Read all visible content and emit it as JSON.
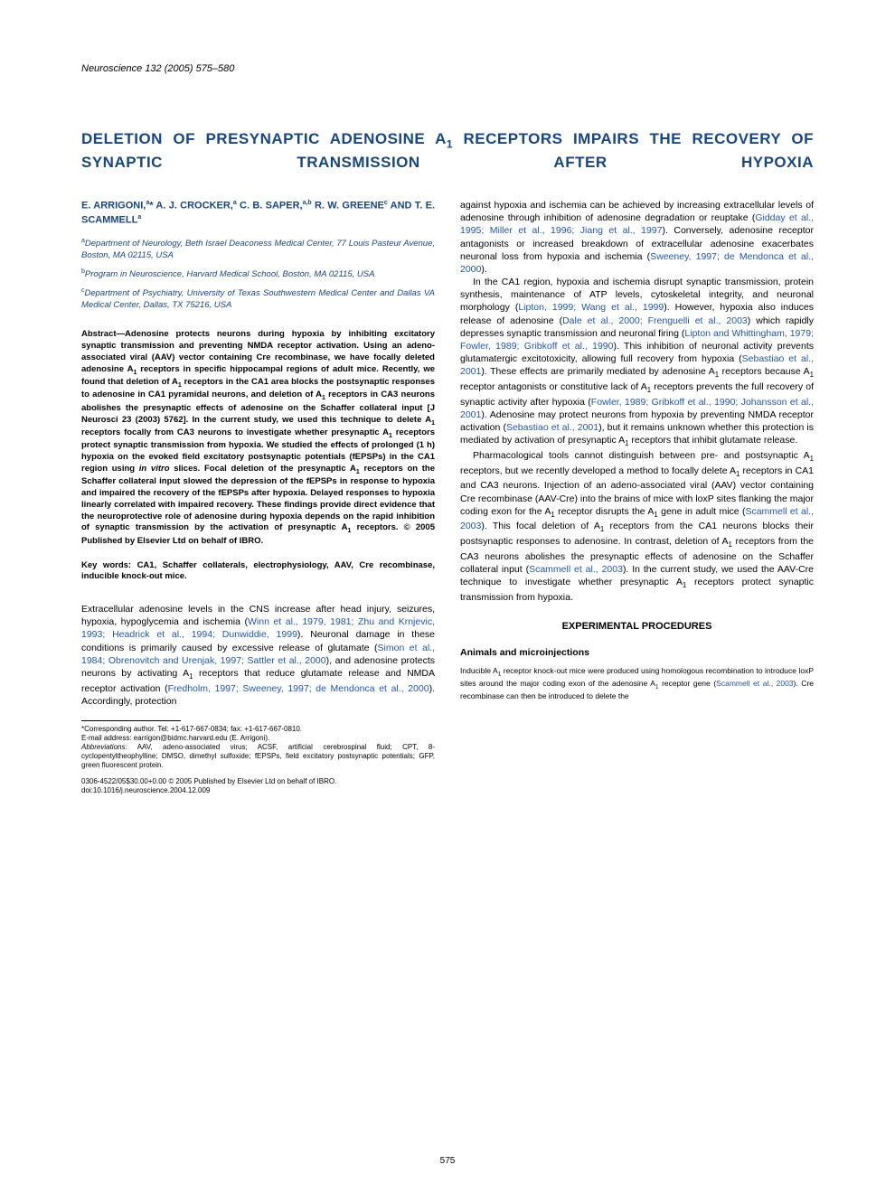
{
  "journal_citation": "Neuroscience 132 (2005) 575–580",
  "title_html": "DELETION OF PRESYNAPTIC ADENOSINE A<sub>1</sub> RECEPTORS IMPAIRS THE RECOVERY OF SYNAPTIC TRANSMISSION AFTER HYPOXIA",
  "authors_html": "E. ARRIGONI,<sup>a</sup>* A. J. CROCKER,<sup>a</sup> C. B. SAPER,<sup>a,b</sup> R. W. GREENE<sup>c</sup> AND T. E. SCAMMELL<sup>a</sup>",
  "affiliations": [
    "<sup>a</sup>Department of Neurology, Beth Israel Deaconess Medical Center, 77 Louis Pasteur Avenue, Boston, MA 02115, USA",
    "<sup>b</sup>Program in Neuroscience, Harvard Medical School, Boston, MA 02115, USA",
    "<sup>c</sup>Department of Psychiatry, University of Texas Southwestern Medical Center and Dallas VA Medical Center, Dallas, TX 75216, USA"
  ],
  "abstract_html": "Abstract—Adenosine protects neurons during hypoxia by inhibiting excitatory synaptic transmission and preventing NMDA receptor activation. Using an adeno-associated viral (AAV) vector containing Cre recombinase, we have focally deleted adenosine A<sub>1</sub> receptors in specific hippocampal regions of adult mice. Recently, we found that deletion of A<sub>1</sub> receptors in the CA1 area blocks the postsynaptic responses to adenosine in CA1 pyramidal neurons, and deletion of A<sub>1</sub> receptors in CA3 neurons abolishes the presynaptic effects of adenosine on the Schaffer collateral input [J Neurosci 23 (2003) 5762]. In the current study, we used this technique to delete A<sub>1</sub> receptors focally from CA3 neurons to investigate whether presynaptic A<sub>1</sub> receptors protect synaptic transmission from hypoxia. We studied the effects of prolonged (1 h) hypoxia on the evoked field excitatory postsynaptic potentials (fEPSPs) in the CA1 region using <i>in vitro</i> slices. Focal deletion of the presynaptic A<sub>1</sub> receptors on the Schaffer collateral input slowed the depression of the fEPSPs in response to hypoxia and impaired the recovery of the fEPSPs after hypoxia. Delayed responses to hypoxia linearly correlated with impaired recovery. These findings provide direct evidence that the neuroprotective role of adenosine during hypoxia depends on the rapid inhibition of synaptic transmission by the activation of presynaptic A<sub>1</sub> receptors. © 2005 Published by Elsevier Ltd on behalf of IBRO.",
  "keywords": "Key words: CA1, Schaffer collaterals, electrophysiology, AAV, Cre recombinase, inducible knock-out mice.",
  "left_body_html": "Extracellular adenosine levels in the CNS increase after head injury, seizures, hypoxia, hypoglycemia and ischemia (<span class='cite-link'>Winn et al., 1979, 1981; Zhu and Krnjevic, 1993; Headrick et al., 1994; Dunwiddie, 1999</span>). Neuronal damage in these conditions is primarily caused by excessive release of glutamate (<span class='cite-link'>Simon et al., 1984; Obrenovitch and Urenjak, 1997; Sattler et al., 2000</span>), and adenosine protects neurons by activating A<sub>1</sub> receptors that reduce glutamate release and NMDA receptor activation (<span class='cite-link'>Fredholm, 1997; Sweeney, 1997; de Mendonca et al., 2000</span>). Accordingly, protection",
  "footnote_html": "*Corresponding author. Tel: +1-617-667-0834; fax: +1-617-667-0810.<br>E-mail address: earrigon@bidmc.harvard.edu (E. Arrigoni).<br><i>Abbreviations:</i> AAV, adeno-associated virus; ACSF, artificial cerebrospinal fluid; CPT, 8-cyclopentyltheophylline; DMSO, dimethyl sulfoxide; fEPSPs, field excitatory postsynaptic potentials; GFP, green fluorescent protein.",
  "copyright_line": "0306-4522/05$30.00+0.00 © 2005 Published by Elsevier Ltd on behalf of IBRO.<br>doi:10.1016/j.neuroscience.2004.12.009",
  "right_body": {
    "p1_html": "against hypoxia and ischemia can be achieved by increasing extracellular levels of adenosine through inhibition of adenosine degradation or reuptake (<span class='cite-link'>Gidday et al., 1995; Miller et al., 1996; Jiang et al., 1997</span>). Conversely, adenosine receptor antagonists or increased breakdown of extracellular adenosine exacerbates neuronal loss from hypoxia and ischemia (<span class='cite-link'>Sweeney, 1997; de Mendonca et al., 2000</span>).",
    "p2_html": "In the CA1 region, hypoxia and ischemia disrupt synaptic transmission, protein synthesis, maintenance of ATP levels, cytoskeletal integrity, and neuronal morphology (<span class='cite-link'>Lipton, 1999; Wang et al., 1999</span>). However, hypoxia also induces release of adenosine (<span class='cite-link'>Dale et al., 2000; Frenguelli et al., 2003</span>) which rapidly depresses synaptic transmission and neuronal firing (<span class='cite-link'>Lipton and Whittingham, 1979; Fowler, 1989; Gribkoff et al., 1990</span>). This inhibition of neuronal activity prevents glutamatergic excitotoxicity, allowing full recovery from hypoxia (<span class='cite-link'>Sebastiao et al., 2001</span>). These effects are primarily mediated by adenosine A<sub>1</sub> receptors because A<sub>1</sub> receptor antagonists or constitutive lack of A<sub>1</sub> receptors prevents the full recovery of synaptic activity after hypoxia (<span class='cite-link'>Fowler, 1989; Gribkoff et al., 1990; Johansson et al., 2001</span>). Adenosine may protect neurons from hypoxia by preventing NMDA receptor activation (<span class='cite-link'>Sebastiao et al., 2001</span>), but it remains unknown whether this protection is mediated by activation of presynaptic A<sub>1</sub> receptors that inhibit glutamate release.",
    "p3_html": "Pharmacological tools cannot distinguish between pre- and postsynaptic A<sub>1</sub> receptors, but we recently developed a method to focally delete A<sub>1</sub> receptors in CA1 and CA3 neurons. Injection of an adeno-associated viral (AAV) vector containing Cre recombinase (AAV-Cre) into the brains of mice with loxP sites flanking the major coding exon for the A<sub>1</sub> receptor disrupts the A<sub>1</sub> gene in adult mice (<span class='cite-link'>Scammell et al., 2003</span>). This focal deletion of A<sub>1</sub> receptors from the CA1 neurons blocks their postsynaptic responses to adenosine. In contrast, deletion of A<sub>1</sub> receptors from the CA3 neurons abolishes the presynaptic effects of adenosine on the Schaffer collateral input (<span class='cite-link'>Scammell et al., 2003</span>). In the current study, we used the AAV-Cre technique to investigate whether presynaptic A<sub>1</sub> receptors protect synaptic transmission from hypoxia."
  },
  "section_header": "EXPERIMENTAL PROCEDURES",
  "subsection": "Animals and microinjections",
  "methods_html": "Inducible A<sub>1</sub> receptor knock-out mice were produced using homologous recombination to introduce loxP sites around the major coding exon of the adenosine A<sub>1</sub> receptor gene (<span class='cite-link'>Scammell et al., 2003</span>). Cre recombinase can then be introduced to delete the",
  "page_number": "575",
  "colors": {
    "heading": "#1a4680",
    "link": "#2255aa",
    "text": "#000000",
    "background": "#ffffff"
  }
}
